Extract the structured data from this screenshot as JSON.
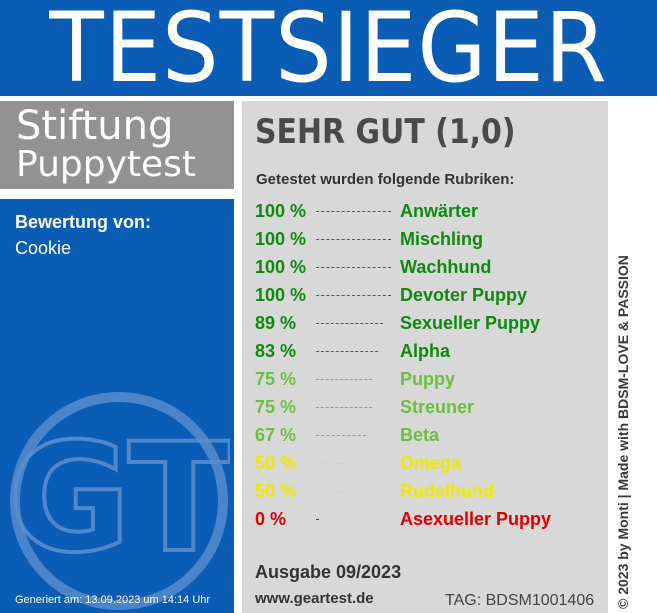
{
  "header": {
    "title": "TESTSIEGER"
  },
  "brand": {
    "line1": "Stiftung",
    "line2": "Puppytest"
  },
  "evaluation": {
    "label": "Bewertung von:",
    "value": "Cookie"
  },
  "logo": {
    "text": "GT",
    "icon": "gt-seal-icon"
  },
  "footer": {
    "generated": "Generiert am: 13.09.2023 um 14:14 Uhr"
  },
  "result": {
    "grade": "SEHR GUT (1,0)",
    "subtitle": "Getestet wurden folgende Rubriken:",
    "categories": [
      {
        "pct": "100 %",
        "name": "Anwärter",
        "value": 100,
        "color": "#0f8a0f"
      },
      {
        "pct": "100 %",
        "name": "Mischling",
        "value": 100,
        "color": "#0f8a0f"
      },
      {
        "pct": "100 %",
        "name": "Wachhund",
        "value": 100,
        "color": "#0f8a0f"
      },
      {
        "pct": "100 %",
        "name": "Devoter Puppy",
        "value": 100,
        "color": "#0f8a0f"
      },
      {
        "pct": "89 %",
        "name": "Sexueller Puppy",
        "value": 89,
        "color": "#0f8a0f"
      },
      {
        "pct": "83 %",
        "name": "Alpha",
        "value": 83,
        "color": "#0f8a0f"
      },
      {
        "pct": "75 %",
        "name": "Puppy",
        "value": 75,
        "color": "#6cc040"
      },
      {
        "pct": "75 %",
        "name": "Streuner",
        "value": 75,
        "color": "#6cc040"
      },
      {
        "pct": "67 %",
        "name": "Beta",
        "value": 67,
        "color": "#6cc040"
      },
      {
        "pct": "50 %",
        "name": "Omega",
        "value": 50,
        "color": "#f0ea00"
      },
      {
        "pct": "50 %",
        "name": "Rudelhund",
        "value": 50,
        "color": "#f0ea00"
      },
      {
        "pct": "0 %",
        "name": "Asexueller Puppy",
        "value": 0,
        "color": "#e00000"
      }
    ],
    "issue": "Ausgabe 09/2023",
    "website": "www.geartest.de",
    "tag": "TAG: BDSM1001406"
  },
  "credit": "© 2023 by Monti | Made with BDSM-LOVE & PASSION",
  "colors": {
    "brand_blue": "#0a5cb4",
    "card_gray": "#d8d8d8",
    "brand_gray": "#929292"
  }
}
